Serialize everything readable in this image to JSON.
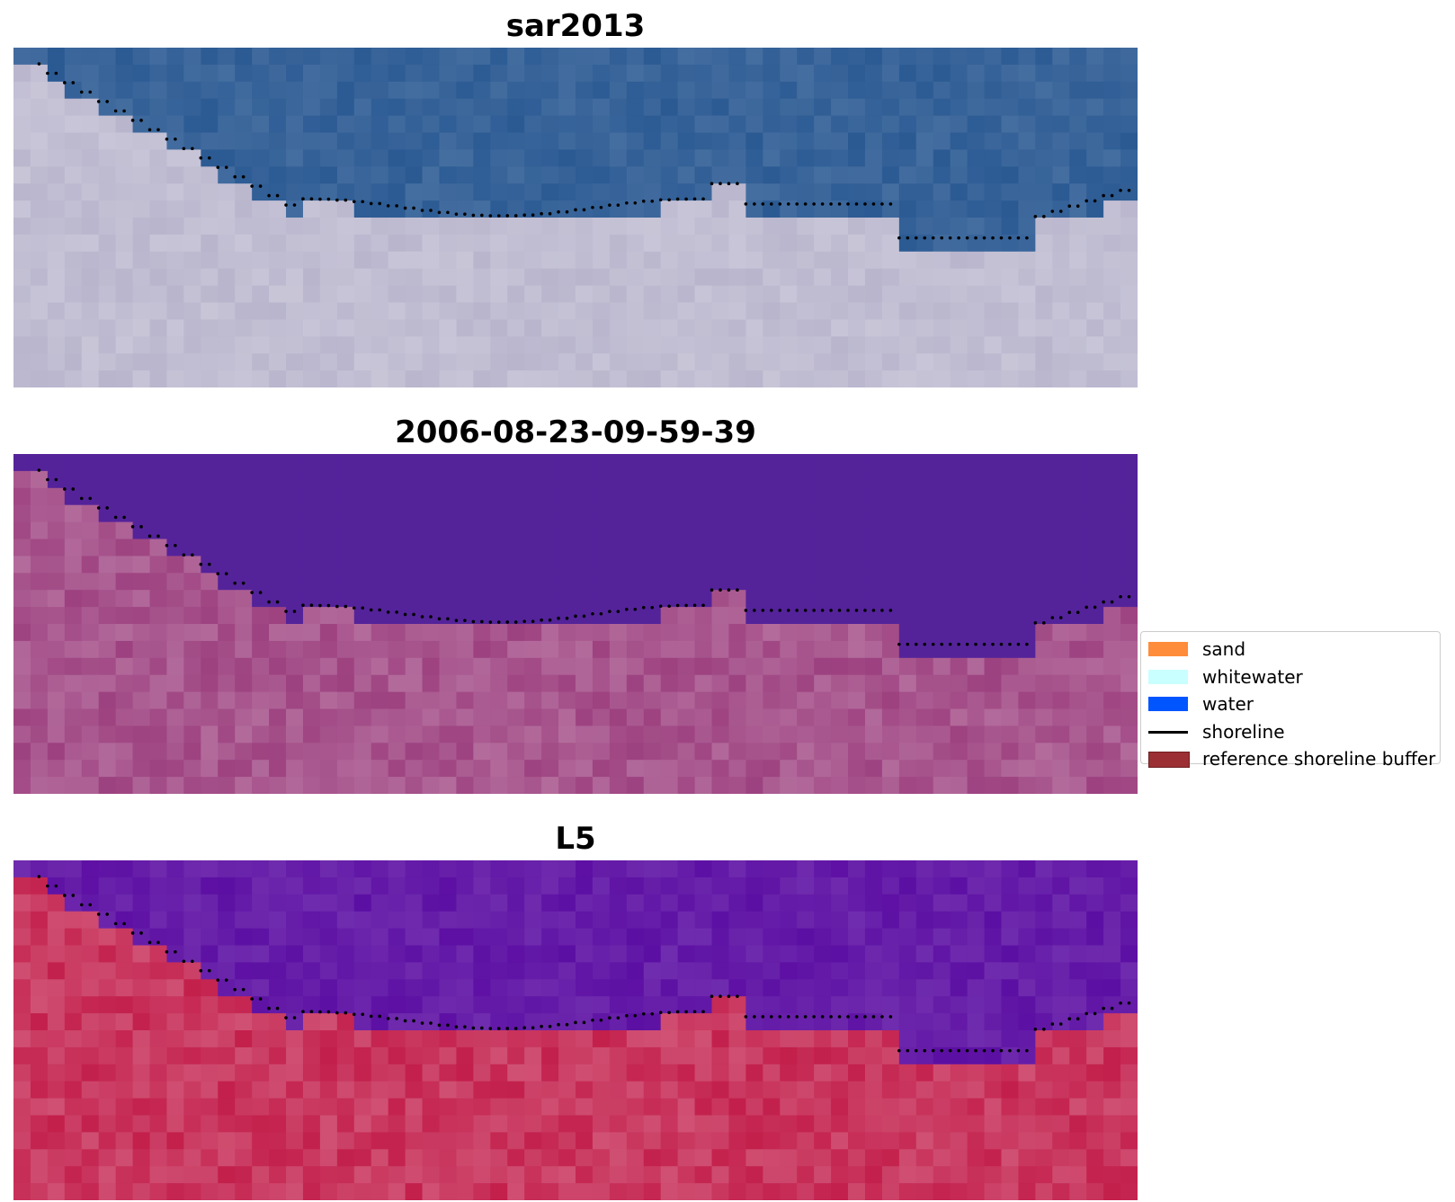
{
  "panels": [
    {
      "title": "sar2013"
    },
    {
      "title": "2006-08-23-09-59-39"
    },
    {
      "title": "L5"
    }
  ],
  "legend": {
    "items": [
      {
        "label": "sand",
        "color": "#ff8c3a",
        "kind": "patch"
      },
      {
        "label": "whitewater",
        "color": "#c9ffff",
        "kind": "patch"
      },
      {
        "label": "water",
        "color": "#0055ff",
        "kind": "patch"
      },
      {
        "label": "shoreline",
        "color": "#000000",
        "kind": "line"
      },
      {
        "label": "reference shoreline buffer",
        "color": "#9b2f33",
        "kind": "patch"
      }
    ]
  },
  "colors": {
    "rgb_water": "#2b5a93",
    "rgb_land": "#b8b4cc",
    "ndwi_water": "#54239a",
    "ndwi_land": "#9c3f7e",
    "mndwi_water": "#5c0fa3",
    "mndwi_land": "#c21d4a",
    "shoreline": "#000000"
  }
}
